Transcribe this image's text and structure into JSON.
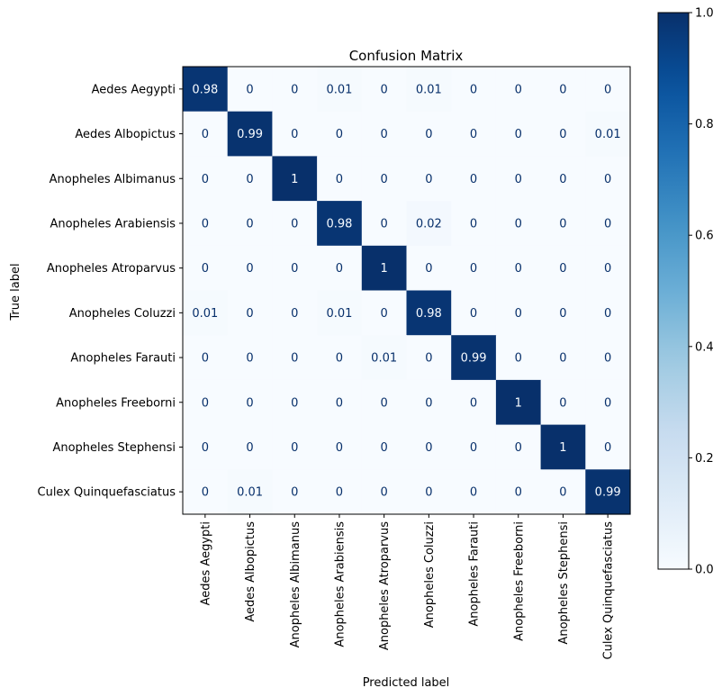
{
  "chart_data": {
    "type": "heatmap",
    "title": "Confusion Matrix",
    "xlabel": "Predicted label",
    "ylabel": "True label",
    "classes": [
      "Aedes Aegypti",
      "Aedes Albopictus",
      "Anopheles Albimanus",
      "Anopheles Arabiensis",
      "Anopheles Atroparvus",
      "Anopheles Coluzzi",
      "Anopheles Farauti",
      "Anopheles Freeborni",
      "Anopheles Stephensi",
      "Culex Quinquefasciatus"
    ],
    "matrix": [
      [
        0.98,
        0,
        0,
        0.01,
        0,
        0.01,
        0,
        0,
        0,
        0
      ],
      [
        0,
        0.99,
        0,
        0,
        0,
        0,
        0,
        0,
        0,
        0.01
      ],
      [
        0,
        0,
        1,
        0,
        0,
        0,
        0,
        0,
        0,
        0
      ],
      [
        0,
        0,
        0,
        0.98,
        0,
        0.02,
        0,
        0,
        0,
        0
      ],
      [
        0,
        0,
        0,
        0,
        1,
        0,
        0,
        0,
        0,
        0
      ],
      [
        0.01,
        0,
        0,
        0.01,
        0,
        0.98,
        0,
        0,
        0,
        0
      ],
      [
        0,
        0,
        0,
        0,
        0.01,
        0,
        0.99,
        0,
        0,
        0
      ],
      [
        0,
        0,
        0,
        0,
        0,
        0,
        0,
        1,
        0,
        0
      ],
      [
        0,
        0,
        0,
        0,
        0,
        0,
        0,
        0,
        1,
        0
      ],
      [
        0,
        0.01,
        0,
        0,
        0,
        0,
        0,
        0,
        0,
        0.99
      ]
    ],
    "colormap": "Blues",
    "vmin": 0,
    "vmax": 1,
    "colorbar_ticks": [
      "0.0",
      "0.2",
      "0.4",
      "0.6",
      "0.8",
      "1.0"
    ],
    "grid": false
  },
  "colors": {
    "low": "#f7fbff",
    "high": "#08306b",
    "text_dark": "#08306b",
    "text_light": "#f7fbff"
  }
}
